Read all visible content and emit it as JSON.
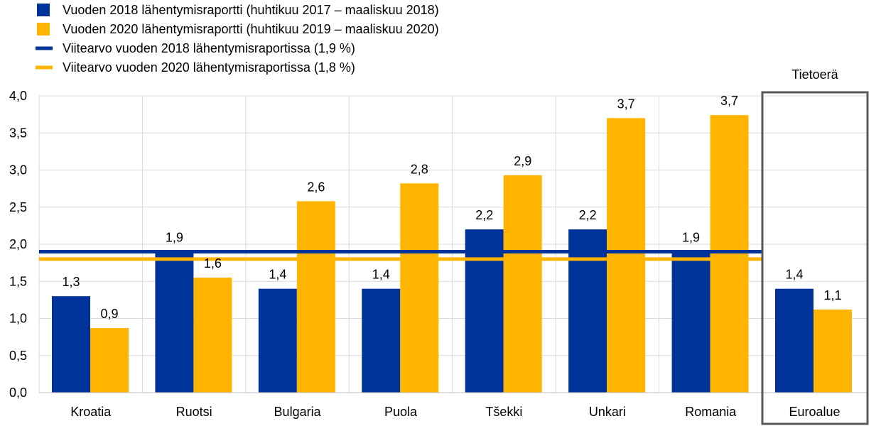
{
  "chart_data": {
    "type": "bar",
    "categories": [
      "Kroatia",
      "Ruotsi",
      "Bulgaria",
      "Puola",
      "Tšekki",
      "Unkari",
      "Romania",
      "Euroalue"
    ],
    "series": [
      {
        "name": "Vuoden 2018 lähentymisraportti (huhtikuu 2017 – maaliskuu 2018)",
        "color": "#003399",
        "values": [
          1.3,
          1.9,
          1.4,
          1.4,
          2.2,
          2.2,
          1.9,
          1.4
        ],
        "labels": [
          "1,3",
          "1,9",
          "1,4",
          "1,4",
          "2,2",
          "2,2",
          "1,9",
          "1,4"
        ]
      },
      {
        "name": "Vuoden 2020 lähentymisraportti (huhtikuu 2019 – maaliskuu 2020)",
        "color": "#FFB400",
        "values": [
          0.87,
          1.55,
          2.58,
          2.82,
          2.93,
          3.7,
          3.74,
          1.12
        ],
        "labels": [
          "0,9",
          "1,6",
          "2,6",
          "2,8",
          "2,9",
          "3,7",
          "3,7",
          "1,1"
        ]
      }
    ],
    "reference_lines": [
      {
        "name": "Viitearvo vuoden 2018 lähentymisraportissa (1,9 %)",
        "value": 1.9,
        "color": "#003399"
      },
      {
        "name": "Viitearvo vuoden 2020 lähentymisraportissa (1,8 %)",
        "value": 1.8,
        "color": "#FFB400"
      }
    ],
    "ylim": [
      0,
      4
    ],
    "yticks": [
      "0,0",
      "0,5",
      "1,0",
      "1,5",
      "2,0",
      "2,5",
      "3,0",
      "3,5",
      "4,0"
    ],
    "highlight_box_label": "Tietoerä",
    "grid": true,
    "legend_position": "top-left",
    "xlabel": "",
    "ylabel": ""
  }
}
